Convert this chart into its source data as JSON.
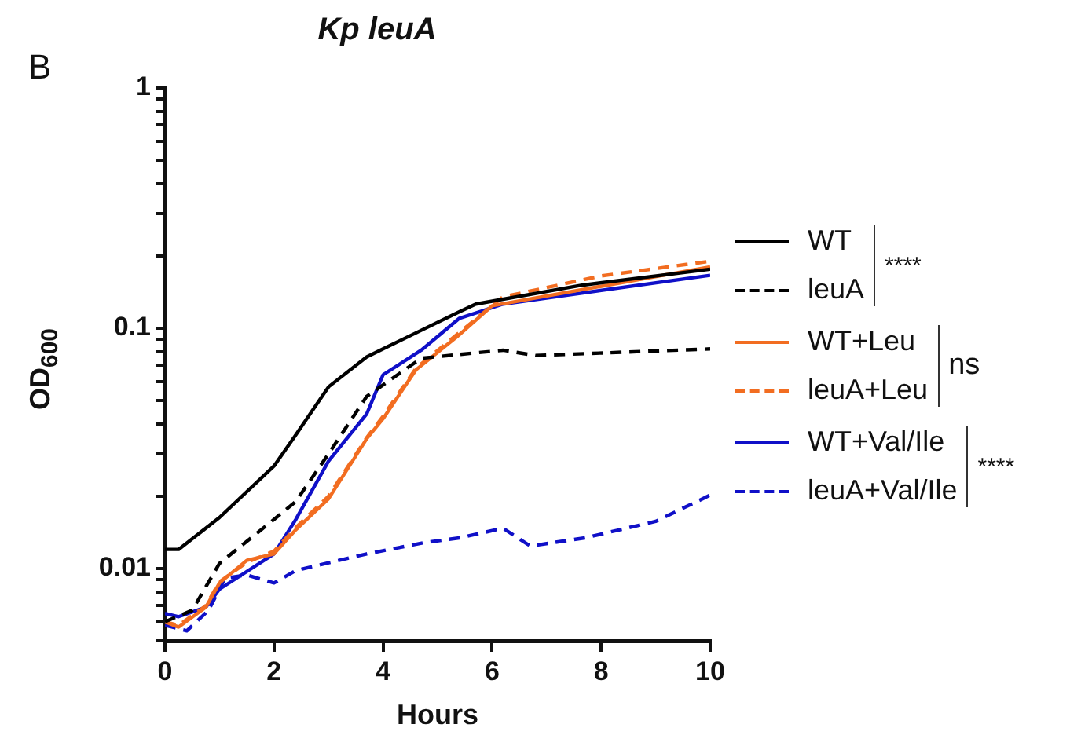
{
  "chart_data": {
    "type": "line",
    "title": "Kp leuA",
    "xlabel": "Hours",
    "ylabel": "OD$_{600}$",
    "log": "y",
    "grid": false,
    "legend": "right",
    "marker": "none",
    "xlim": [
      0,
      10
    ],
    "xticks": [
      0,
      2,
      4,
      6,
      8,
      10
    ],
    "ylim": [
      0.005,
      1
    ],
    "yticks": [
      {
        "value": 0.005,
        "label": null
      },
      {
        "value": 0.006,
        "label": null
      },
      {
        "value": 0.007,
        "label": null
      },
      {
        "value": 0.008,
        "label": null
      },
      {
        "value": 0.009,
        "label": null
      },
      0.01,
      {
        "value": 0.02,
        "label": null
      },
      {
        "value": 0.03,
        "label": null
      },
      {
        "value": 0.04,
        "label": null
      },
      {
        "value": 0.05,
        "label": null
      },
      {
        "value": 0.06,
        "label": null
      },
      {
        "value": 0.07,
        "label": null
      },
      {
        "value": 0.08,
        "label": null
      },
      {
        "value": 0.09,
        "label": null
      },
      0.1,
      {
        "value": 0.2,
        "label": null
      },
      {
        "value": 0.3,
        "label": null
      },
      {
        "value": 0.4,
        "label": null
      },
      {
        "value": 0.5,
        "label": null
      },
      {
        "value": 0.6,
        "label": null
      },
      {
        "value": 0.7,
        "label": null
      },
      {
        "value": 0.8,
        "label": null
      },
      {
        "value": 0.9,
        "label": null
      },
      1
    ],
    "annotations": [
      "B",
      "****",
      "ns",
      "****"
    ],
    "series": [
      {
        "name": "WT",
        "color": "#000000",
        "line_style": "solid",
        "x": [
          0,
          0.25,
          1,
          2,
          2.4,
          3,
          3.7,
          4,
          4.7,
          5.4,
          5.7,
          7.65,
          10
        ],
        "values": [
          0.012,
          0.012,
          0.0163,
          0.0267,
          0.036,
          0.057,
          0.076,
          0.082,
          0.098,
          0.117,
          0.126,
          0.151,
          0.176
        ]
      },
      {
        "name": "leuA",
        "color": "#000000",
        "line_style": "dashed",
        "x": [
          0,
          0.5,
          1,
          2,
          2.4,
          3,
          3.7,
          4.7,
          6.2,
          6.8,
          10
        ],
        "values": [
          0.006,
          0.0067,
          0.0105,
          0.016,
          0.019,
          0.03,
          0.052,
          0.075,
          0.081,
          0.077,
          0.082
        ]
      },
      {
        "name": "WT+Leu",
        "color": "#f26d21",
        "line_style": "solid",
        "x": [
          0,
          0.25,
          0.75,
          1,
          1.5,
          2,
          2.4,
          3,
          3.7,
          4,
          4.6,
          5.4,
          6,
          10
        ],
        "values": [
          0.006,
          0.0057,
          0.0069,
          0.0087,
          0.0108,
          0.0115,
          0.0145,
          0.0195,
          0.0347,
          0.042,
          0.067,
          0.094,
          0.124,
          0.18
        ]
      },
      {
        "name": "leuA+Leu",
        "color": "#f26d21",
        "line_style": "dashed",
        "x": [
          0,
          0.25,
          0.75,
          1,
          1.5,
          2,
          2.4,
          3,
          3.7,
          4,
          4.6,
          5.4,
          6.2,
          8,
          10
        ],
        "values": [
          0.006,
          0.0058,
          0.007,
          0.0088,
          0.0106,
          0.0118,
          0.0148,
          0.02,
          0.035,
          0.043,
          0.068,
          0.096,
          0.135,
          0.165,
          0.19
        ]
      },
      {
        "name": "WT+Val/Ile",
        "color": "#1010c8",
        "line_style": "solid",
        "x": [
          0,
          0.25,
          0.75,
          1,
          2,
          2.4,
          3,
          3.7,
          4,
          4.7,
          5.4,
          6.2,
          10
        ],
        "values": [
          0.0065,
          0.0063,
          0.0069,
          0.0082,
          0.0115,
          0.016,
          0.028,
          0.044,
          0.064,
          0.081,
          0.11,
          0.126,
          0.166
        ]
      },
      {
        "name": "leuA+Val/Ile",
        "color": "#1010c8",
        "line_style": "dashed",
        "x": [
          0,
          0.4,
          0.8,
          1.1,
          1.5,
          2,
          2.4,
          3.7,
          4.75,
          5.4,
          6.2,
          6.7,
          7.7,
          9,
          10
        ],
        "values": [
          0.0058,
          0.0055,
          0.0067,
          0.0091,
          0.0094,
          0.0087,
          0.0098,
          0.0115,
          0.0128,
          0.0134,
          0.0147,
          0.0124,
          0.0134,
          0.0157,
          0.0202
        ]
      }
    ]
  }
}
